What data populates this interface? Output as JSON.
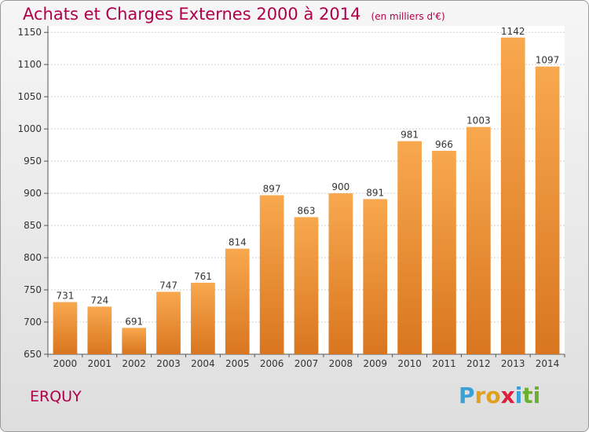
{
  "chart_data": {
    "type": "bar",
    "title": "Achats et Charges Externes 2000 à 2014",
    "subtitle": "(en milliers d'€)",
    "categories": [
      "2000",
      "2001",
      "2002",
      "2003",
      "2004",
      "2005",
      "2006",
      "2007",
      "2008",
      "2009",
      "2010",
      "2011",
      "2012",
      "2013",
      "2014"
    ],
    "values": [
      731,
      724,
      691,
      747,
      761,
      814,
      897,
      863,
      900,
      891,
      981,
      966,
      1003,
      1142,
      1097
    ],
    "value_labels": [
      "731",
      "724",
      "691",
      "747",
      "761",
      "814",
      "897",
      "863",
      "900",
      "891",
      "981",
      "966",
      "1003",
      "1142",
      "1097"
    ],
    "xlabel": "",
    "ylabel": "",
    "ylim": [
      650,
      1160
    ],
    "yticks": [
      650,
      700,
      750,
      800,
      850,
      900,
      950,
      1000,
      1050,
      1100,
      1150
    ],
    "grid": true,
    "colors": {
      "bar_light": "#f8a84e",
      "bar_dark": "#d9761f",
      "title": "#b0004a"
    }
  },
  "footer": {
    "town": "ERQUY",
    "logo_letters": [
      {
        "ch": "P",
        "color": "#3aa0d8"
      },
      {
        "ch": "r",
        "color": "#e2a020"
      },
      {
        "ch": "o",
        "color": "#e2a020"
      },
      {
        "ch": "x",
        "color": "#e0203a"
      },
      {
        "ch": "i",
        "color": "#3aa0d8"
      },
      {
        "ch": "t",
        "color": "#6ab030"
      },
      {
        "ch": "i",
        "color": "#6ab030"
      }
    ]
  }
}
